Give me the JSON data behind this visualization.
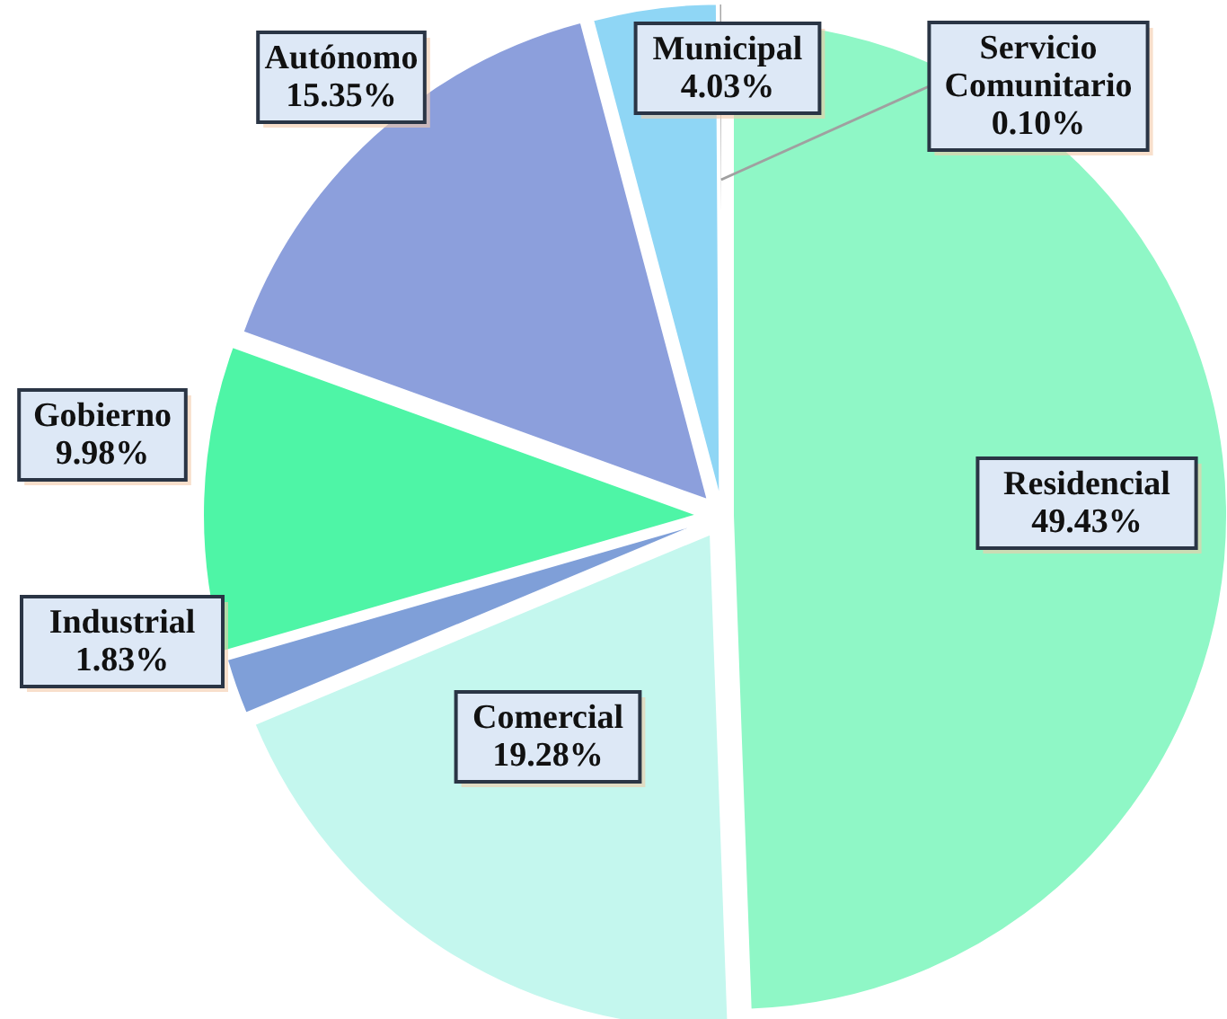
{
  "chart_data": {
    "type": "pie",
    "categories": [
      "Residencial",
      "Comercial",
      "Industrial",
      "Gobierno",
      "Autónomo",
      "Municipal",
      "Servicio Comunitario"
    ],
    "values": [
      49.43,
      19.28,
      1.83,
      9.98,
      15.35,
      4.03,
      0.1
    ],
    "colors": [
      "#8ff7c6",
      "#c4f7ee",
      "#7f9fd8",
      "#4ef5a6",
      "#8c9fdc",
      "#8fd6f5",
      "#a0a0a0"
    ],
    "value_labels": [
      "49.43%",
      "19.28%",
      "1.83%",
      "9.98%",
      "15.35%",
      "4.03%",
      "0.10%"
    ]
  }
}
